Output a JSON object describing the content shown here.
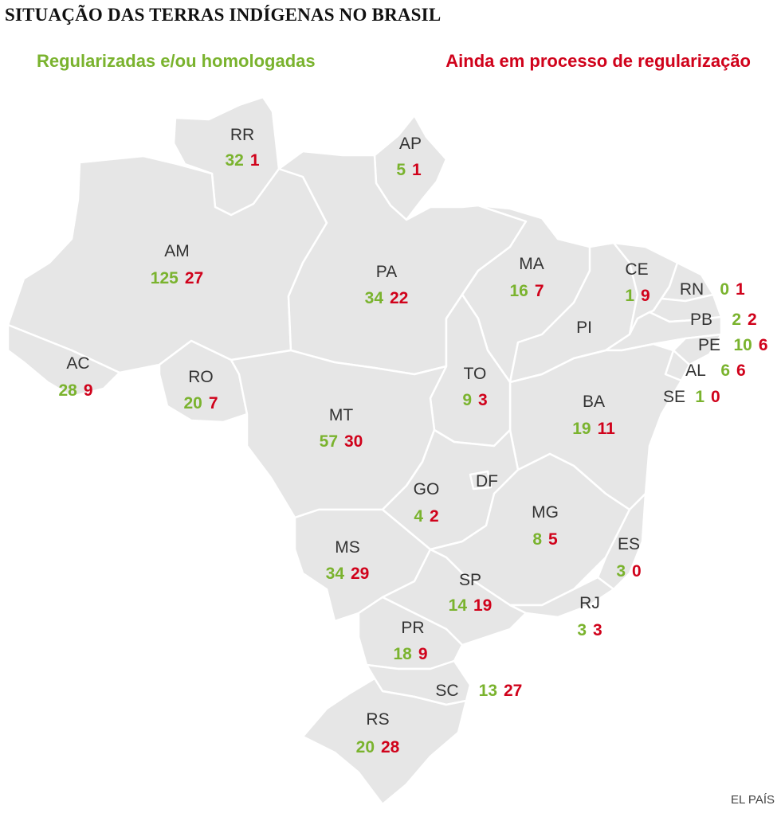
{
  "title": "SITUAÇÃO DAS TERRAS INDÍGENAS NO BRASIL",
  "legend": {
    "regularized": "Regularizadas e/ou homologadas",
    "in_process": "Ainda em processo de regularização"
  },
  "colors": {
    "regularized": "#7ab32e",
    "in_process": "#d0021b",
    "land": "#e6e6e6",
    "border": "#ffffff",
    "label": "#333333"
  },
  "credit": "EL PAÍS",
  "states": [
    {
      "code": "RR",
      "regularized": "32",
      "in_process": "1"
    },
    {
      "code": "AP",
      "regularized": "5",
      "in_process": "1"
    },
    {
      "code": "AM",
      "regularized": "125",
      "in_process": "27"
    },
    {
      "code": "PA",
      "regularized": "34",
      "in_process": "22"
    },
    {
      "code": "MA",
      "regularized": "16",
      "in_process": "7"
    },
    {
      "code": "CE",
      "regularized": "1",
      "in_process": "9"
    },
    {
      "code": "RN",
      "regularized": "0",
      "in_process": "1"
    },
    {
      "code": "PB",
      "regularized": "2",
      "in_process": "2"
    },
    {
      "code": "PE",
      "regularized": "10",
      "in_process": "6"
    },
    {
      "code": "AL",
      "regularized": "6",
      "in_process": "6"
    },
    {
      "code": "SE",
      "regularized": "1",
      "in_process": "0"
    },
    {
      "code": "PI",
      "regularized": "",
      "in_process": ""
    },
    {
      "code": "AC",
      "regularized": "28",
      "in_process": "9"
    },
    {
      "code": "RO",
      "regularized": "20",
      "in_process": "7"
    },
    {
      "code": "TO",
      "regularized": "9",
      "in_process": "3"
    },
    {
      "code": "BA",
      "regularized": "19",
      "in_process": "11"
    },
    {
      "code": "MT",
      "regularized": "57",
      "in_process": "30"
    },
    {
      "code": "GO",
      "regularized": "4",
      "in_process": "2"
    },
    {
      "code": "DF",
      "regularized": "",
      "in_process": ""
    },
    {
      "code": "MG",
      "regularized": "8",
      "in_process": "5"
    },
    {
      "code": "ES",
      "regularized": "3",
      "in_process": "0"
    },
    {
      "code": "MS",
      "regularized": "34",
      "in_process": "29"
    },
    {
      "code": "SP",
      "regularized": "14",
      "in_process": "19"
    },
    {
      "code": "RJ",
      "regularized": "3",
      "in_process": "3"
    },
    {
      "code": "PR",
      "regularized": "18",
      "in_process": "9"
    },
    {
      "code": "SC",
      "regularized": "13",
      "in_process": "27"
    },
    {
      "code": "RS",
      "regularized": "20",
      "in_process": "28"
    }
  ]
}
